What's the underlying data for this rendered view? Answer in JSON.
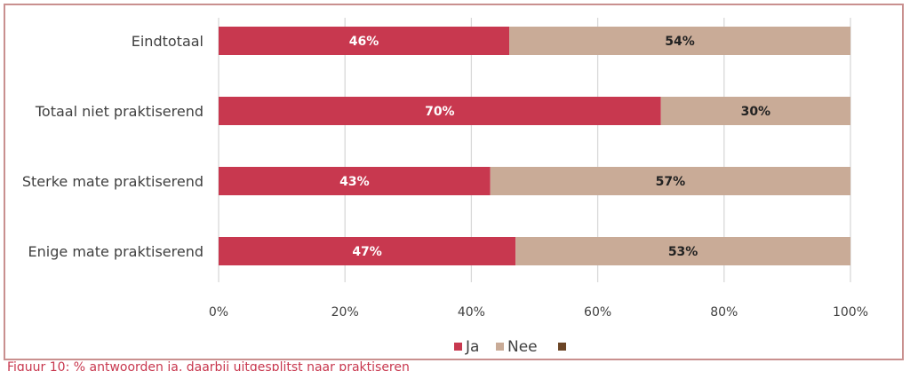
{
  "chart_data": {
    "type": "bar",
    "orientation": "horizontal",
    "stacked": true,
    "categories": [
      "Eindtotaal",
      "Totaal niet praktiserend",
      "Sterke mate praktiserend",
      "Enige mate praktiserend"
    ],
    "series": [
      {
        "name": "Ja",
        "values": [
          46,
          70,
          43,
          47
        ],
        "labels": [
          "46%",
          "70%",
          "43%",
          "47%"
        ],
        "color": "#c8384f",
        "label_color": "#ffffff"
      },
      {
        "name": "Nee",
        "values": [
          54,
          30,
          57,
          53
        ],
        "labels": [
          "54%",
          "30%",
          "57%",
          "53%"
        ],
        "color": "#c9ab97",
        "label_color": "#222222"
      },
      {
        "name": "",
        "values": [
          0,
          0,
          0,
          0
        ],
        "labels": [
          "",
          "",
          "",
          ""
        ],
        "color": "#6b4526",
        "label_color": "#ffffff"
      }
    ],
    "xlim": [
      0,
      100
    ],
    "xticks": [
      0,
      20,
      40,
      60,
      80,
      100
    ],
    "xtick_labels": [
      "0%",
      "20%",
      "40%",
      "60%",
      "80%",
      "100%"
    ],
    "grid": true,
    "legend_position": "bottom",
    "title": "",
    "xlabel": "",
    "ylabel": ""
  },
  "caption": "Figuur 10: % antwoorden ja, daarbij uitgesplitst naar praktiseren"
}
